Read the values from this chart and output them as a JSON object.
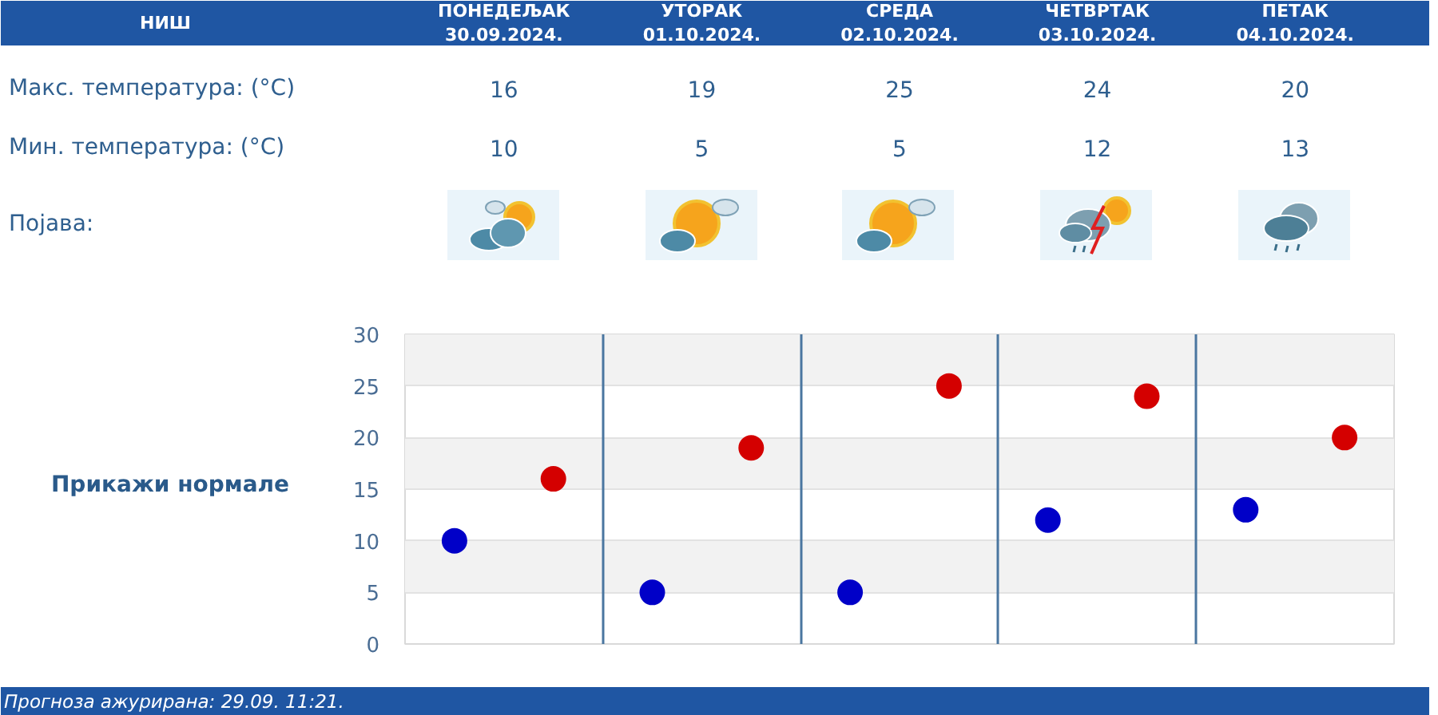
{
  "chart_data": {
    "type": "scatter",
    "title": "НИШ",
    "categories": [
      null,
      null,
      null,
      null,
      null
    ],
    "series": [
      {
        "color": "#d40000",
        "values": [
          16,
          19,
          25,
          24,
          20
        ]
      },
      {
        "color": "#0000c8",
        "values": [
          10,
          5,
          5,
          12,
          13
        ]
      }
    ],
    "ylim": [
      0,
      30
    ],
    "yticks": [
      0,
      5,
      10,
      15,
      20,
      25,
      30
    ],
    "grid": true,
    "marker": "circle",
    "data_labels": true,
    "tick_labels": "y",
    "annotations": [
      "ПОНЕДЕЉАК\n30.09.2024.",
      "УТОРАК\n01.10.2024.",
      "СРЕДА\n02.10.2024.",
      "ЧЕТВРТАК\n03.10.2024.",
      "ПЕТАК\n04.10.2024.",
      "Макс. температура: (°C)",
      "Мин. температура: (°C)",
      "Појава:",
      "Прикажи нормале",
      "Прогноза ажурирана: 29.09. 11:21."
    ]
  }
}
